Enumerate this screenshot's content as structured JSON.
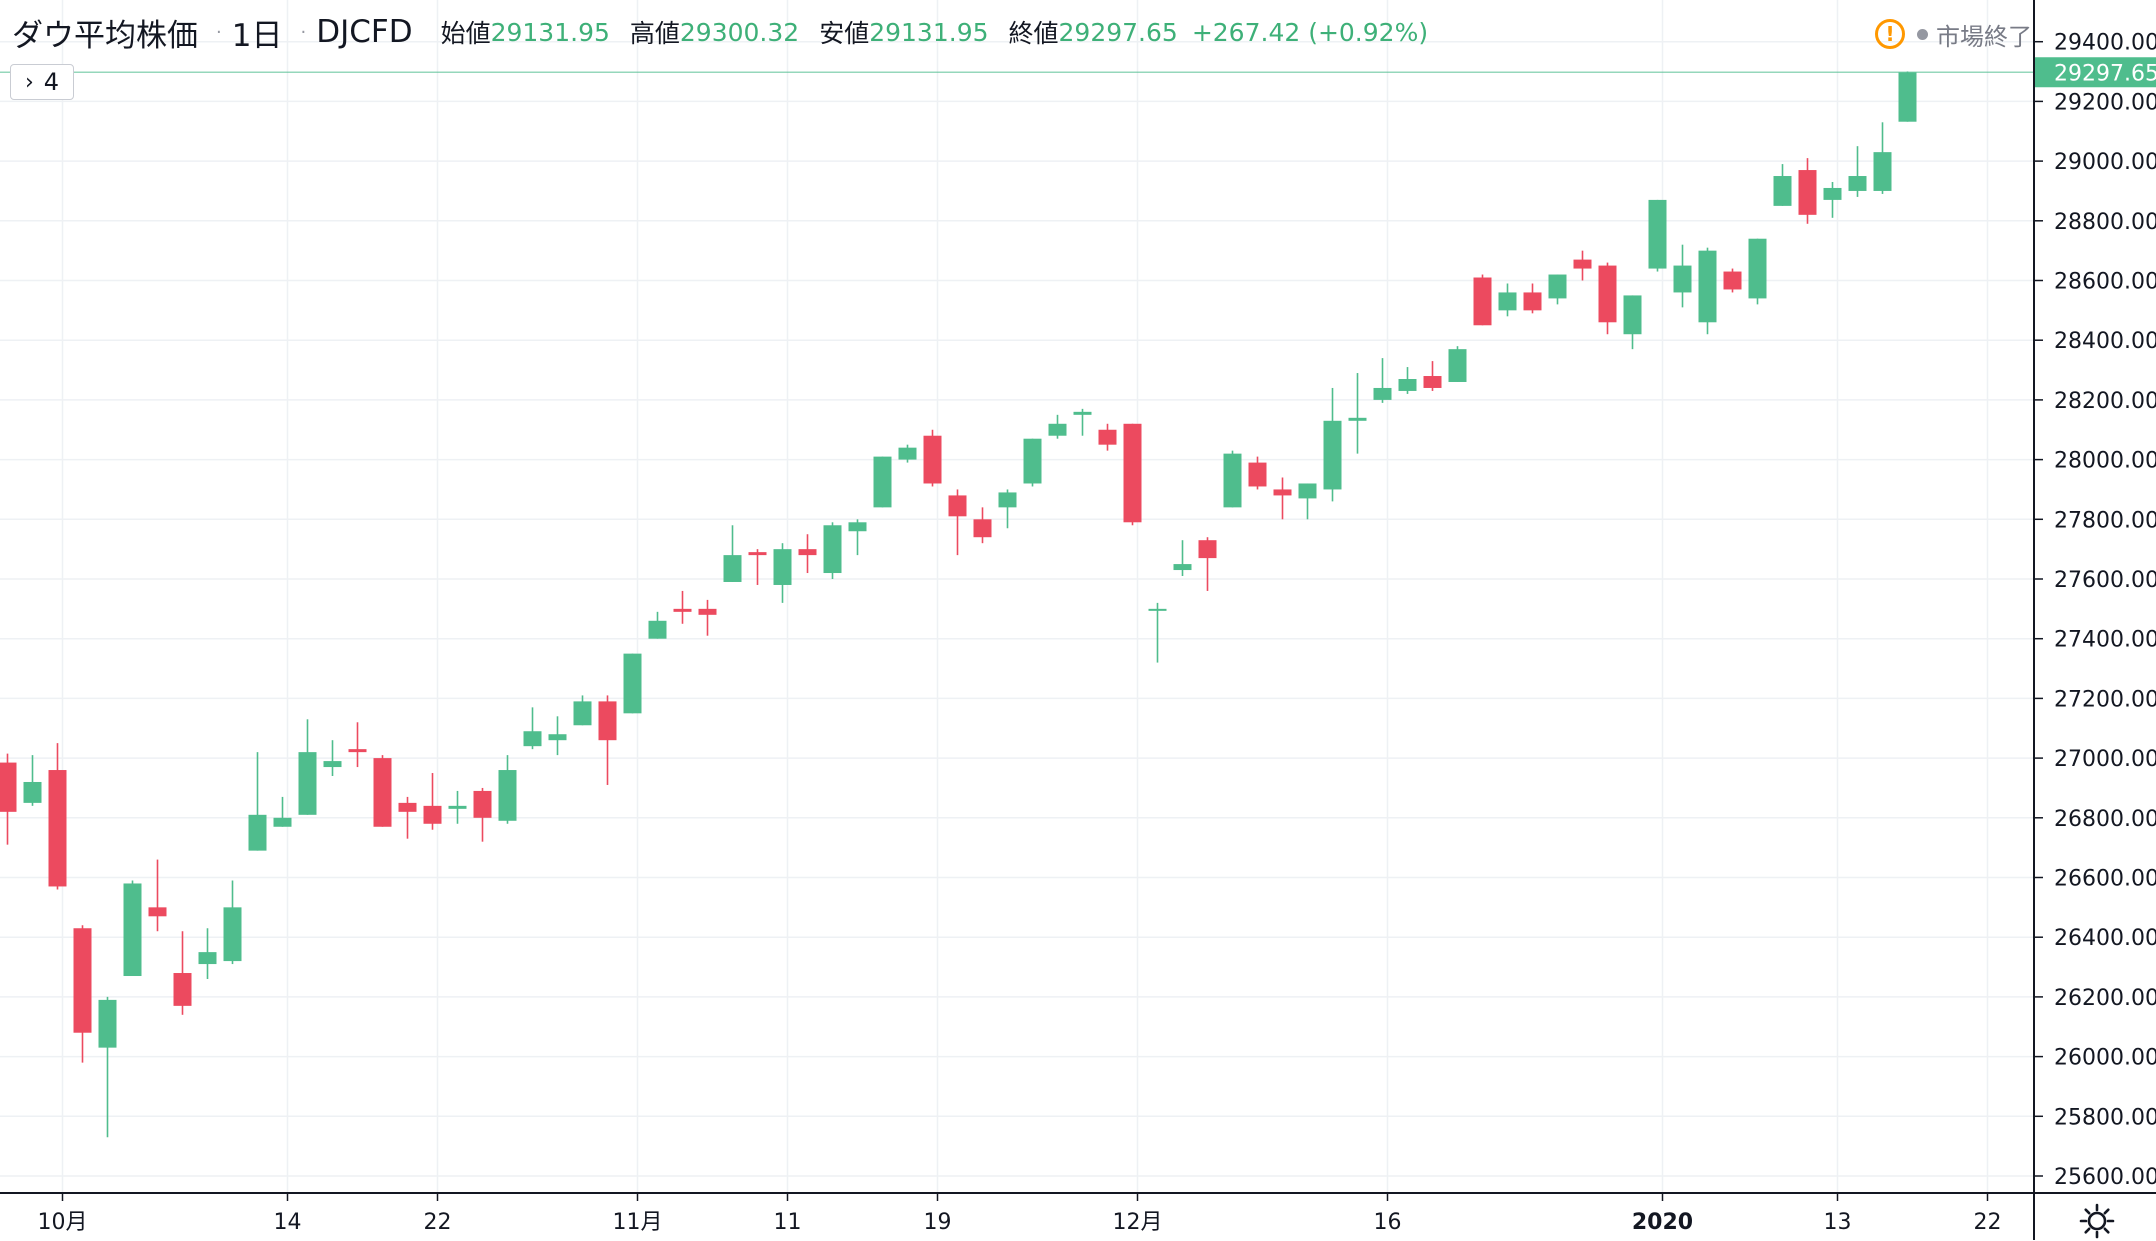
{
  "legend": {
    "symbol": "ダウ平均株価",
    "separator": "·",
    "interval": "1日",
    "source": "DJCFD",
    "open_label": "始値",
    "open_value": "29131.95",
    "high_label": "高値",
    "high_value": "29300.32",
    "low_label": "安値",
    "low_value": "29131.95",
    "close_label": "終値",
    "close_value": "29297.65",
    "change": "+267.42 (+0.92%)"
  },
  "indicator_badge": {
    "chevron": "›",
    "count": "4"
  },
  "market_status": {
    "icon": "warning-icon",
    "text": "市場終了"
  },
  "settings": {
    "icon": "gear-icon"
  },
  "colors": {
    "up": "#4fbd8d",
    "down": "#ec4a5f",
    "grid": "#eef1f4",
    "axis": "#131722",
    "last_price_line": "#4fbd8d"
  },
  "chart_data": {
    "type": "candlestick",
    "price_range": [
      25520,
      29440
    ],
    "y_ticks": [
      25600,
      25800,
      26000,
      26200,
      26400,
      26600,
      26800,
      27000,
      27200,
      27400,
      27600,
      27800,
      28000,
      28200,
      28400,
      28600,
      28800,
      29000,
      29200,
      29400
    ],
    "x_labels": [
      {
        "text": "10月",
        "index": 2.2,
        "bold": false
      },
      {
        "text": "14",
        "index": 11.2,
        "bold": false
      },
      {
        "text": "22",
        "index": 17.2,
        "bold": false
      },
      {
        "text": "11月",
        "index": 25.2,
        "bold": false
      },
      {
        "text": "11",
        "index": 31.2,
        "bold": false
      },
      {
        "text": "19",
        "index": 37.2,
        "bold": false
      },
      {
        "text": "12月",
        "index": 45.2,
        "bold": false
      },
      {
        "text": "16",
        "index": 55.2,
        "bold": false
      },
      {
        "text": "2020",
        "index": 66.2,
        "bold": true
      },
      {
        "text": "13",
        "index": 73.2,
        "bold": false
      },
      {
        "text": "22",
        "index": 79.2,
        "bold": false
      }
    ],
    "last_price": "29297.65",
    "last_price_value": 29297.65,
    "candles": [
      {
        "o": 26985,
        "h": 27015,
        "l": 26710,
        "c": 26820
      },
      {
        "o": 26850,
        "h": 27010,
        "l": 26840,
        "c": 26920
      },
      {
        "o": 26960,
        "h": 27050,
        "l": 26560,
        "c": 26570
      },
      {
        "o": 26430,
        "h": 26440,
        "l": 25980,
        "c": 26080
      },
      {
        "o": 26030,
        "h": 26200,
        "l": 25730,
        "c": 26190
      },
      {
        "o": 26270,
        "h": 26590,
        "l": 26270,
        "c": 26580
      },
      {
        "o": 26500,
        "h": 26660,
        "l": 26420,
        "c": 26470
      },
      {
        "o": 26280,
        "h": 26420,
        "l": 26140,
        "c": 26170
      },
      {
        "o": 26310,
        "h": 26430,
        "l": 26260,
        "c": 26350
      },
      {
        "o": 26320,
        "h": 26590,
        "l": 26310,
        "c": 26500
      },
      {
        "o": 26690,
        "h": 27020,
        "l": 26690,
        "c": 26810
      },
      {
        "o": 26770,
        "h": 26870,
        "l": 26770,
        "c": 26800
      },
      {
        "o": 26810,
        "h": 27130,
        "l": 26810,
        "c": 27020
      },
      {
        "o": 26970,
        "h": 27060,
        "l": 26940,
        "c": 26990
      },
      {
        "o": 27030,
        "h": 27120,
        "l": 26970,
        "c": 27020
      },
      {
        "o": 27000,
        "h": 27010,
        "l": 26770,
        "c": 26770
      },
      {
        "o": 26850,
        "h": 26870,
        "l": 26730,
        "c": 26820
      },
      {
        "o": 26840,
        "h": 26950,
        "l": 26760,
        "c": 26780
      },
      {
        "o": 26830,
        "h": 26890,
        "l": 26780,
        "c": 26840
      },
      {
        "o": 26890,
        "h": 26900,
        "l": 26720,
        "c": 26800
      },
      {
        "o": 26790,
        "h": 27010,
        "l": 26780,
        "c": 26960
      },
      {
        "o": 27040,
        "h": 27170,
        "l": 27030,
        "c": 27090
      },
      {
        "o": 27060,
        "h": 27140,
        "l": 27010,
        "c": 27080
      },
      {
        "o": 27110,
        "h": 27210,
        "l": 27110,
        "c": 27190
      },
      {
        "o": 27190,
        "h": 27210,
        "l": 26910,
        "c": 27060
      },
      {
        "o": 27150,
        "h": 27350,
        "l": 27150,
        "c": 27350
      },
      {
        "o": 27400,
        "h": 27490,
        "l": 27400,
        "c": 27460
      },
      {
        "o": 27500,
        "h": 27560,
        "l": 27450,
        "c": 27490
      },
      {
        "o": 27500,
        "h": 27530,
        "l": 27410,
        "c": 27480
      },
      {
        "o": 27590,
        "h": 27780,
        "l": 27590,
        "c": 27680
      },
      {
        "o": 27690,
        "h": 27700,
        "l": 27580,
        "c": 27680
      },
      {
        "o": 27580,
        "h": 27720,
        "l": 27520,
        "c": 27700
      },
      {
        "o": 27700,
        "h": 27750,
        "l": 27620,
        "c": 27680
      },
      {
        "o": 27620,
        "h": 27790,
        "l": 27600,
        "c": 27780
      },
      {
        "o": 27760,
        "h": 27800,
        "l": 27680,
        "c": 27790
      },
      {
        "o": 27840,
        "h": 28010,
        "l": 27840,
        "c": 28010
      },
      {
        "o": 28000,
        "h": 28050,
        "l": 27990,
        "c": 28040
      },
      {
        "o": 28080,
        "h": 28100,
        "l": 27910,
        "c": 27920
      },
      {
        "o": 27880,
        "h": 27900,
        "l": 27680,
        "c": 27810
      },
      {
        "o": 27800,
        "h": 27840,
        "l": 27720,
        "c": 27740
      },
      {
        "o": 27840,
        "h": 27900,
        "l": 27770,
        "c": 27890
      },
      {
        "o": 27920,
        "h": 28070,
        "l": 27910,
        "c": 28070
      },
      {
        "o": 28080,
        "h": 28150,
        "l": 28070,
        "c": 28120
      },
      {
        "o": 28150,
        "h": 28170,
        "l": 28080,
        "c": 28160
      },
      {
        "o": 28100,
        "h": 28120,
        "l": 28030,
        "c": 28050
      },
      {
        "o": 28120,
        "h": 28120,
        "l": 27780,
        "c": 27790
      },
      {
        "o": 27500,
        "h": 27520,
        "l": 27320,
        "c": 27500
      },
      {
        "o": 27630,
        "h": 27730,
        "l": 27610,
        "c": 27650
      },
      {
        "o": 27730,
        "h": 27740,
        "l": 27560,
        "c": 27670
      },
      {
        "o": 27840,
        "h": 28030,
        "l": 27840,
        "c": 28020
      },
      {
        "o": 27990,
        "h": 28010,
        "l": 27900,
        "c": 27910
      },
      {
        "o": 27900,
        "h": 27940,
        "l": 27800,
        "c": 27880
      },
      {
        "o": 27870,
        "h": 27920,
        "l": 27800,
        "c": 27920
      },
      {
        "o": 27900,
        "h": 28240,
        "l": 27860,
        "c": 28130
      },
      {
        "o": 28130,
        "h": 28290,
        "l": 28020,
        "c": 28140
      },
      {
        "o": 28200,
        "h": 28340,
        "l": 28190,
        "c": 28240
      },
      {
        "o": 28230,
        "h": 28310,
        "l": 28220,
        "c": 28270
      },
      {
        "o": 28280,
        "h": 28330,
        "l": 28230,
        "c": 28240
      },
      {
        "o": 28260,
        "h": 28380,
        "l": 28260,
        "c": 28370
      },
      {
        "o": 28610,
        "h": 28620,
        "l": 28450,
        "c": 28450
      },
      {
        "o": 28500,
        "h": 28590,
        "l": 28480,
        "c": 28560
      },
      {
        "o": 28560,
        "h": 28590,
        "l": 28490,
        "c": 28500
      },
      {
        "o": 28540,
        "h": 28620,
        "l": 28520,
        "c": 28620
      },
      {
        "o": 28670,
        "h": 28700,
        "l": 28600,
        "c": 28640
      },
      {
        "o": 28650,
        "h": 28660,
        "l": 28420,
        "c": 28460
      },
      {
        "o": 28420,
        "h": 28550,
        "l": 28370,
        "c": 28550
      },
      {
        "o": 28640,
        "h": 28870,
        "l": 28630,
        "c": 28870
      },
      {
        "o": 28560,
        "h": 28720,
        "l": 28510,
        "c": 28650
      },
      {
        "o": 28460,
        "h": 28710,
        "l": 28420,
        "c": 28700
      },
      {
        "o": 28630,
        "h": 28640,
        "l": 28560,
        "c": 28570
      },
      {
        "o": 28540,
        "h": 28740,
        "l": 28520,
        "c": 28740
      },
      {
        "o": 28850,
        "h": 28990,
        "l": 28850,
        "c": 28950
      },
      {
        "o": 28970,
        "h": 29010,
        "l": 28790,
        "c": 28820
      },
      {
        "o": 28870,
        "h": 28930,
        "l": 28810,
        "c": 28910
      },
      {
        "o": 28900,
        "h": 29050,
        "l": 28880,
        "c": 28950
      },
      {
        "o": 28900,
        "h": 29130,
        "l": 28890,
        "c": 29030
      },
      {
        "o": 29131.95,
        "h": 29300.32,
        "l": 29131.95,
        "c": 29297.65
      }
    ]
  }
}
